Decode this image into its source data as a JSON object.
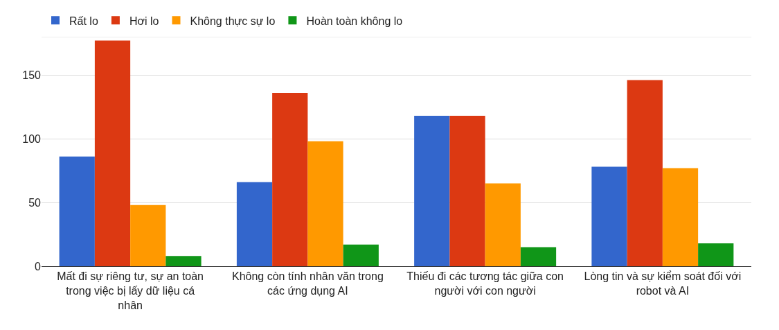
{
  "chart_data": {
    "type": "bar",
    "categories": [
      "Mất đi sự riêng tư, sự an toàn trong việc bị lấy dữ liệu cá nhân",
      "Không còn tính nhân văn trong các ứng dụng AI",
      "Thiếu đi các tương tác giữa con người với con người",
      "Lòng tin và sự kiểm soát đối với robot và AI"
    ],
    "series": [
      {
        "name": "Rất lo",
        "color": "#3366cc",
        "values": [
          86,
          66,
          118,
          78
        ]
      },
      {
        "name": "Hơi lo",
        "color": "#dc3912",
        "values": [
          177,
          136,
          118,
          146
        ]
      },
      {
        "name": "Không thực sự lo",
        "color": "#ff9900",
        "values": [
          48,
          98,
          65,
          77
        ]
      },
      {
        "name": "Hoàn toàn không lo",
        "color": "#109618",
        "values": [
          8,
          17,
          15,
          18
        ]
      }
    ],
    "ylim": [
      0,
      180
    ],
    "yticks": [
      0,
      50,
      100,
      150,
      {
        "value": 180,
        "label": null
      }
    ],
    "grid": "y",
    "legend": "top left"
  }
}
